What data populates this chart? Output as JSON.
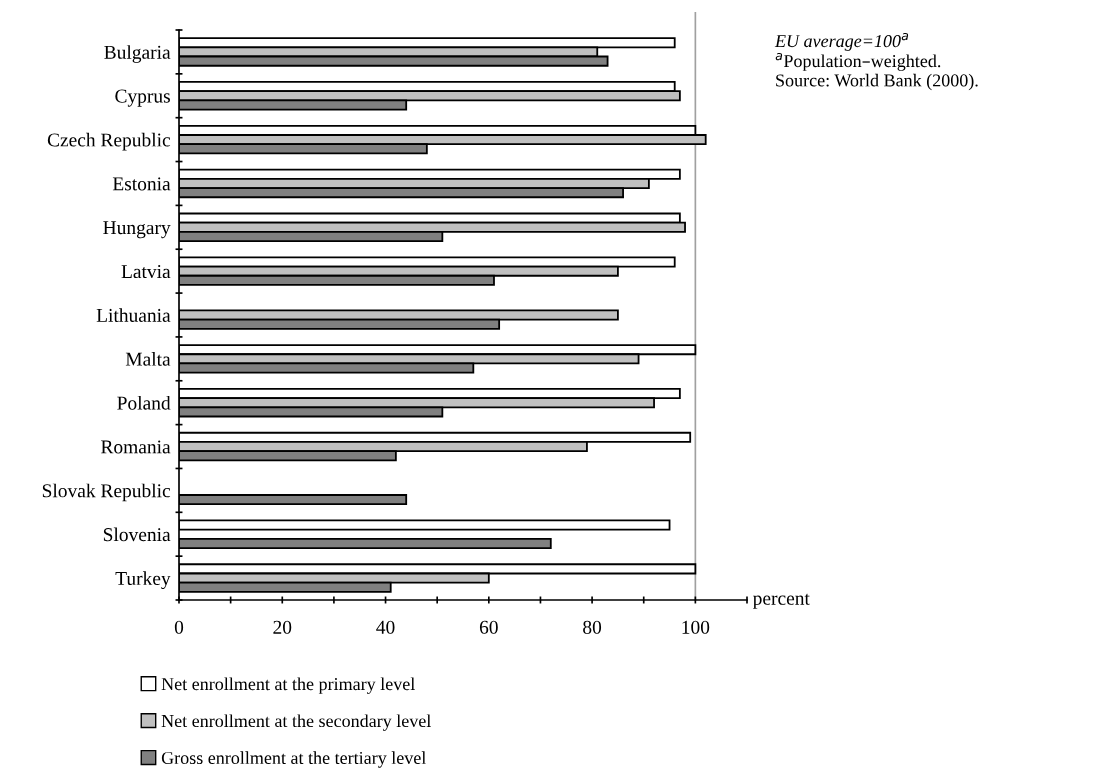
{
  "chart_data": {
    "type": "bar",
    "orientation": "horizontal",
    "categories": [
      "Bulgaria",
      "Cyprus",
      "Czech Republic",
      "Estonia",
      "Hungary",
      "Latvia",
      "Lithuania",
      "Malta",
      "Poland",
      "Romania",
      "Slovak Republic",
      "Slovenia",
      "Turkey"
    ],
    "series": [
      {
        "name": "Net enrollment at the primary level",
        "color": "#ffffff",
        "values": [
          96,
          96,
          100,
          97,
          97,
          96,
          null,
          100,
          97,
          99,
          null,
          95,
          100
        ]
      },
      {
        "name": "Net enrollment at the secondary level",
        "color": "#c0c0c0",
        "values": [
          81,
          97,
          102,
          91,
          98,
          85,
          85,
          89,
          92,
          79,
          null,
          null,
          60
        ]
      },
      {
        "name": "Gross enrollment at the tertiary level",
        "color": "#808080",
        "values": [
          83,
          44,
          48,
          86,
          51,
          61,
          62,
          57,
          51,
          42,
          44,
          72,
          41
        ]
      }
    ],
    "xlabel": "percent",
    "xlim": [
      0,
      110
    ],
    "xticks": [
      0,
      {
        "value": 10,
        "label": null
      },
      20,
      {
        "value": 30,
        "label": null
      },
      40,
      {
        "value": 50,
        "label": null
      },
      60,
      {
        "value": 70,
        "label": null
      },
      80,
      {
        "value": 90,
        "label": null
      },
      100,
      {
        "value": 110,
        "label": null
      }
    ],
    "ref_lines": [
      {
        "axis": "x",
        "value": 100,
        "color": "#a0a0a0"
      }
    ],
    "annotations": [
      "EU average=100$^{a}$",
      "$^{a}$Population–weighted.",
      "Source: World Bank (2000)."
    ],
    "legend": "bottom left",
    "grid": false
  }
}
